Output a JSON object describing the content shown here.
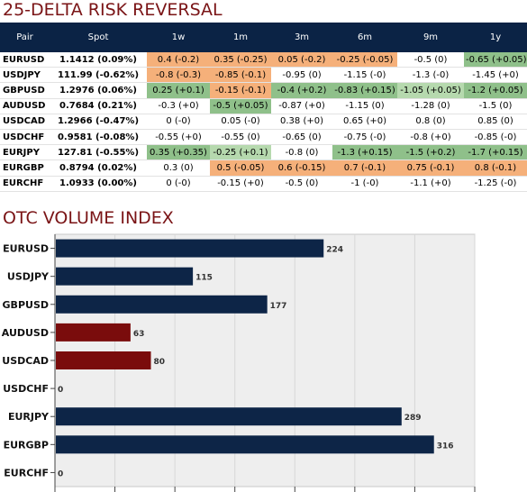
{
  "titles": {
    "risk_reversal": "25-DELTA RISK REVERSAL",
    "volume": "OTC VOLUME INDEX"
  },
  "colors": {
    "header_bg": "#0b2345",
    "title": "#7a1416",
    "orange": "#f5b07a",
    "green": "#8fc08a",
    "green_light": "#b6d9ae",
    "bar_navy": "#0d2547",
    "bar_red": "#7a0c0c",
    "plot_bg": "#eeeeee"
  },
  "table": {
    "headers": [
      "Pair",
      "Spot",
      "1w",
      "1m",
      "3m",
      "6m",
      "9m",
      "1y"
    ],
    "rows": [
      {
        "pair": "EURUSD",
        "spot": "1.1412 (0.09%)",
        "cells": [
          {
            "v": "0.4 (-0.2)",
            "c": "orange"
          },
          {
            "v": "0.35 (-0.25)",
            "c": "orange"
          },
          {
            "v": "0.05 (-0.2)",
            "c": "orange"
          },
          {
            "v": "-0.25 (-0.05)",
            "c": "orange"
          },
          {
            "v": "-0.5 (0)",
            "c": ""
          },
          {
            "v": "-0.65 (+0.05)",
            "c": "green"
          }
        ]
      },
      {
        "pair": "USDJPY",
        "spot": "111.99 (-0.62%)",
        "cells": [
          {
            "v": "-0.8 (-0.3)",
            "c": "orange"
          },
          {
            "v": "-0.85 (-0.1)",
            "c": "orange"
          },
          {
            "v": "-0.95 (0)",
            "c": ""
          },
          {
            "v": "-1.15 (-0)",
            "c": ""
          },
          {
            "v": "-1.3 (-0)",
            "c": ""
          },
          {
            "v": "-1.45 (+0)",
            "c": ""
          }
        ]
      },
      {
        "pair": "GBPUSD",
        "spot": "1.2976 (0.06%)",
        "cells": [
          {
            "v": "0.25 (+0.1)",
            "c": "green"
          },
          {
            "v": "-0.15 (-0.1)",
            "c": "orange"
          },
          {
            "v": "-0.4 (+0.2)",
            "c": "green"
          },
          {
            "v": "-0.83 (+0.15)",
            "c": "green"
          },
          {
            "v": "-1.05 (+0.05)",
            "c": "green_light"
          },
          {
            "v": "-1.2 (+0.05)",
            "c": "green"
          }
        ]
      },
      {
        "pair": "AUDUSD",
        "spot": "0.7684 (0.21%)",
        "cells": [
          {
            "v": "-0.3 (+0)",
            "c": ""
          },
          {
            "v": "-0.5 (+0.05)",
            "c": "green"
          },
          {
            "v": "-0.87 (+0)",
            "c": ""
          },
          {
            "v": "-1.15 (0)",
            "c": ""
          },
          {
            "v": "-1.28 (0)",
            "c": ""
          },
          {
            "v": "-1.5 (0)",
            "c": ""
          }
        ]
      },
      {
        "pair": "USDCAD",
        "spot": "1.2966 (-0.47%)",
        "cells": [
          {
            "v": "0 (-0)",
            "c": ""
          },
          {
            "v": "0.05 (-0)",
            "c": ""
          },
          {
            "v": "0.38 (+0)",
            "c": ""
          },
          {
            "v": "0.65 (+0)",
            "c": ""
          },
          {
            "v": "0.8 (0)",
            "c": ""
          },
          {
            "v": "0.85 (0)",
            "c": ""
          }
        ]
      },
      {
        "pair": "USDCHF",
        "spot": "0.9581 (-0.08%)",
        "cells": [
          {
            "v": "-0.55 (+0)",
            "c": ""
          },
          {
            "v": "-0.55 (0)",
            "c": ""
          },
          {
            "v": "-0.65 (0)",
            "c": ""
          },
          {
            "v": "-0.75 (-0)",
            "c": ""
          },
          {
            "v": "-0.8 (+0)",
            "c": ""
          },
          {
            "v": "-0.85 (-0)",
            "c": ""
          }
        ]
      },
      {
        "pair": "EURJPY",
        "spot": "127.81 (-0.55%)",
        "cells": [
          {
            "v": "0.35 (+0.35)",
            "c": "green"
          },
          {
            "v": "-0.25 (+0.1)",
            "c": "green_light"
          },
          {
            "v": "-0.8 (0)",
            "c": ""
          },
          {
            "v": "-1.3 (+0.15)",
            "c": "green"
          },
          {
            "v": "-1.5 (+0.2)",
            "c": "green"
          },
          {
            "v": "-1.7 (+0.15)",
            "c": "green"
          }
        ]
      },
      {
        "pair": "EURGBP",
        "spot": "0.8794 (0.02%)",
        "cells": [
          {
            "v": "0.3 (0)",
            "c": ""
          },
          {
            "v": "0.5 (-0.05)",
            "c": "orange"
          },
          {
            "v": "0.6 (-0.15)",
            "c": "orange"
          },
          {
            "v": "0.7 (-0.1)",
            "c": "orange"
          },
          {
            "v": "0.75 (-0.1)",
            "c": "orange"
          },
          {
            "v": "0.8 (-0.1)",
            "c": "orange"
          }
        ]
      },
      {
        "pair": "EURCHF",
        "spot": "1.0933 (0.00%)",
        "cells": [
          {
            "v": "0 (-0)",
            "c": ""
          },
          {
            "v": "-0.15 (+0)",
            "c": ""
          },
          {
            "v": "-0.5 (0)",
            "c": ""
          },
          {
            "v": "-1 (-0)",
            "c": ""
          },
          {
            "v": "-1.1 (+0)",
            "c": ""
          },
          {
            "v": "-1.25 (-0)",
            "c": ""
          }
        ]
      }
    ]
  },
  "chart_data": {
    "type": "bar",
    "orientation": "horizontal",
    "title": "OTC VOLUME INDEX",
    "categories": [
      "EURUSD",
      "USDJPY",
      "GBPUSD",
      "AUDUSD",
      "USDCAD",
      "USDCHF",
      "EURJPY",
      "EURGBP",
      "EURCHF"
    ],
    "values": [
      224,
      115,
      177,
      63,
      80,
      0,
      289,
      316,
      0
    ],
    "bar_colors": [
      "navy",
      "navy",
      "navy",
      "red",
      "red",
      "navy",
      "navy",
      "navy",
      "navy"
    ],
    "xlim": [
      0,
      350
    ],
    "grid": true
  }
}
